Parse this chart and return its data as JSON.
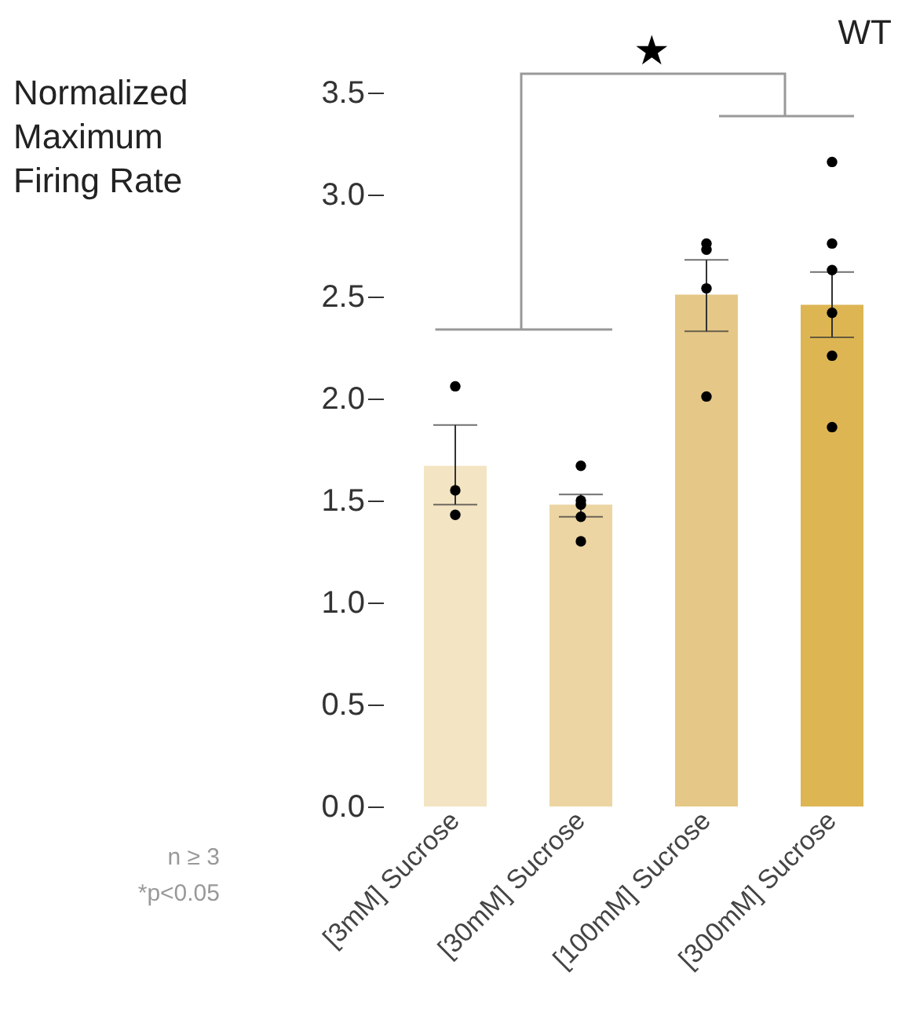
{
  "chart_data": {
    "type": "bar",
    "title": "WT",
    "ylabel": "Normalized\nMaximum\nFiring Rate",
    "categories": [
      "[3mM] Sucrose",
      "[30mM] Sucrose",
      "[100mM] Sucrose",
      "[300mM] Sucrose"
    ],
    "series": [
      {
        "values": [
          1.67,
          1.48,
          2.51,
          2.46
        ],
        "colors": [
          "#f3e4c3",
          "#ecd5a3",
          "#e5c887",
          "#ddb553"
        ],
        "errors": [
          [
            1.48,
            1.87
          ],
          [
            1.42,
            1.53
          ],
          [
            2.33,
            2.68
          ],
          [
            2.3,
            2.62
          ]
        ]
      },
      {
        "type": "scatter",
        "color": "#000000",
        "x": [
          "[3mM] Sucrose",
          "[3mM] Sucrose",
          "[3mM] Sucrose",
          "[30mM] Sucrose",
          "[30mM] Sucrose",
          "[30mM] Sucrose",
          "[30mM] Sucrose",
          "[30mM] Sucrose",
          "[100mM] Sucrose",
          "[100mM] Sucrose",
          "[100mM] Sucrose",
          "[100mM] Sucrose",
          "[300mM] Sucrose",
          "[300mM] Sucrose",
          "[300mM] Sucrose",
          "[300mM] Sucrose",
          "[300mM] Sucrose",
          "[300mM] Sucrose"
        ],
        "values": [
          2.06,
          1.55,
          1.43,
          1.67,
          1.5,
          1.48,
          1.42,
          1.3,
          2.76,
          2.73,
          2.54,
          2.01,
          3.16,
          2.76,
          2.63,
          2.42,
          2.21,
          1.86
        ]
      }
    ],
    "ylim": [
      0,
      3.5
    ],
    "yticks": [
      {
        "value": 0,
        "label": "0.0"
      },
      0.5,
      {
        "value": 1,
        "label": "1.0"
      },
      1.5,
      {
        "value": 2,
        "label": "2.0"
      },
      2.5,
      {
        "value": 3,
        "label": "3.0"
      },
      3.5
    ],
    "grid": false,
    "marker": "circle",
    "annotations": [
      "★",
      "n ≥ 3",
      "*p<0.05"
    ]
  }
}
